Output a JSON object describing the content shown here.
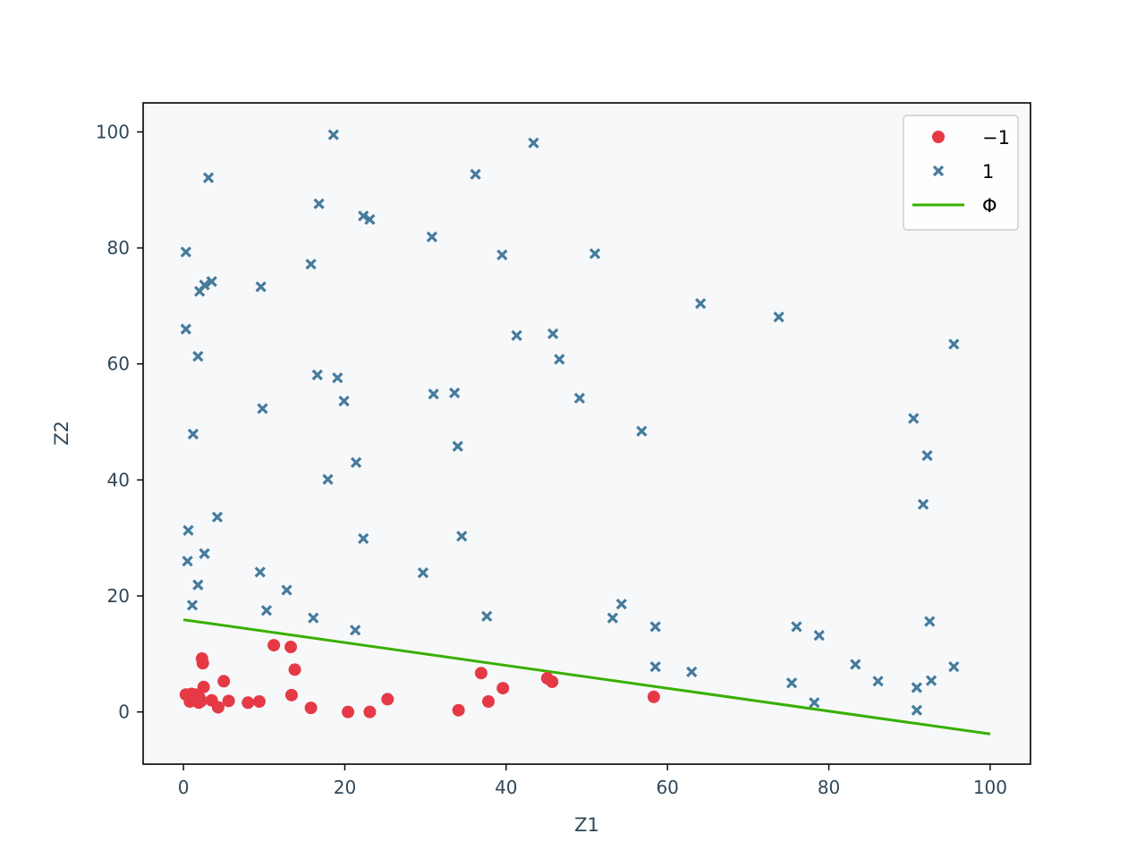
{
  "chart_data": {
    "type": "scatter",
    "xlabel": "Z1",
    "ylabel": "Z2",
    "xlim": [
      -5,
      105
    ],
    "ylim": [
      -9,
      105
    ],
    "xticks": [
      0,
      20,
      40,
      60,
      80,
      100
    ],
    "yticks": [
      0,
      20,
      40,
      60,
      80,
      100
    ],
    "grid": false,
    "legend_position": "top-right",
    "background": "#f7f8fa",
    "series": [
      {
        "name": "−1",
        "marker": "circle",
        "color": "#e63946",
        "points": [
          [
            0.3,
            3.0
          ],
          [
            0.8,
            2.5
          ],
          [
            1.0,
            3.1
          ],
          [
            0.8,
            1.8
          ],
          [
            1.5,
            3.0
          ],
          [
            1.9,
            1.6
          ],
          [
            2.0,
            2.4
          ],
          [
            2.2,
            1.9
          ],
          [
            2.3,
            9.2
          ],
          [
            2.4,
            8.4
          ],
          [
            2.5,
            4.3
          ],
          [
            3.5,
            2.0
          ],
          [
            4.3,
            0.8
          ],
          [
            5.0,
            5.3
          ],
          [
            5.6,
            1.9
          ],
          [
            8.0,
            1.6
          ],
          [
            9.4,
            1.8
          ],
          [
            11.2,
            11.5
          ],
          [
            13.3,
            11.2
          ],
          [
            13.4,
            2.9
          ],
          [
            13.8,
            7.3
          ],
          [
            15.8,
            0.7
          ],
          [
            20.4,
            0.0
          ],
          [
            23.1,
            0.0
          ],
          [
            25.3,
            2.2
          ],
          [
            34.1,
            0.3
          ],
          [
            36.9,
            6.7
          ],
          [
            37.8,
            1.8
          ],
          [
            39.6,
            4.1
          ],
          [
            45.1,
            5.8
          ],
          [
            45.7,
            5.2
          ],
          [
            58.3,
            2.6
          ]
        ]
      },
      {
        "name": "1",
        "marker": "x",
        "color": "#457b9d",
        "points": [
          [
            0.3,
            79.3
          ],
          [
            0.3,
            66.0
          ],
          [
            0.5,
            26.0
          ],
          [
            0.6,
            31.3
          ],
          [
            1.1,
            18.4
          ],
          [
            1.2,
            47.9
          ],
          [
            1.8,
            61.3
          ],
          [
            1.8,
            21.9
          ],
          [
            2.0,
            72.5
          ],
          [
            2.6,
            73.6
          ],
          [
            2.6,
            27.3
          ],
          [
            3.1,
            92.1
          ],
          [
            3.5,
            74.2
          ],
          [
            4.2,
            33.6
          ],
          [
            9.5,
            24.1
          ],
          [
            9.6,
            73.3
          ],
          [
            9.8,
            52.3
          ],
          [
            10.3,
            17.5
          ],
          [
            12.8,
            21.0
          ],
          [
            15.8,
            77.2
          ],
          [
            16.1,
            16.2
          ],
          [
            16.6,
            58.1
          ],
          [
            16.8,
            87.6
          ],
          [
            17.9,
            40.1
          ],
          [
            18.6,
            99.5
          ],
          [
            19.1,
            57.6
          ],
          [
            19.9,
            53.6
          ],
          [
            21.3,
            14.1
          ],
          [
            21.4,
            43.0
          ],
          [
            22.3,
            85.5
          ],
          [
            22.3,
            29.9
          ],
          [
            23.1,
            84.9
          ],
          [
            29.7,
            24.0
          ],
          [
            30.8,
            81.9
          ],
          [
            31.0,
            54.8
          ],
          [
            33.6,
            55.0
          ],
          [
            34.0,
            45.8
          ],
          [
            34.5,
            30.3
          ],
          [
            36.2,
            92.7
          ],
          [
            37.6,
            16.5
          ],
          [
            39.5,
            78.8
          ],
          [
            41.3,
            64.9
          ],
          [
            43.4,
            98.1
          ],
          [
            45.8,
            65.2
          ],
          [
            46.6,
            60.8
          ],
          [
            49.1,
            54.1
          ],
          [
            51.0,
            79.0
          ],
          [
            53.2,
            16.2
          ],
          [
            54.3,
            18.6
          ],
          [
            56.8,
            48.4
          ],
          [
            58.5,
            14.7
          ],
          [
            58.5,
            7.8
          ],
          [
            63.0,
            6.9
          ],
          [
            64.1,
            70.4
          ],
          [
            73.8,
            68.1
          ],
          [
            75.4,
            5.0
          ],
          [
            76.0,
            14.7
          ],
          [
            78.2,
            1.6
          ],
          [
            78.8,
            13.2
          ],
          [
            83.3,
            8.2
          ],
          [
            86.1,
            5.3
          ],
          [
            90.5,
            50.6
          ],
          [
            90.9,
            4.2
          ],
          [
            90.9,
            0.3
          ],
          [
            91.7,
            35.8
          ],
          [
            92.2,
            44.2
          ],
          [
            92.5,
            15.6
          ],
          [
            92.7,
            5.4
          ],
          [
            95.5,
            7.8
          ],
          [
            95.5,
            63.4
          ]
        ]
      },
      {
        "name": "Φ",
        "marker": "line",
        "color": "#38b000",
        "points": [
          [
            0,
            15.9
          ],
          [
            100,
            -3.8
          ]
        ]
      }
    ]
  }
}
